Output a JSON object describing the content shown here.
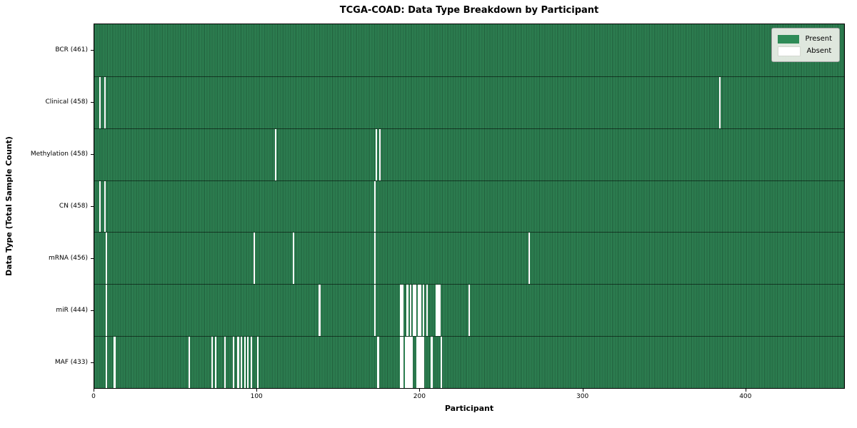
{
  "chart_data": {
    "type": "heatmap",
    "title": "TCGA-COAD: Data Type Breakdown by Participant",
    "xlabel": "Participant",
    "ylabel": "Data Type (Total Sample Count)",
    "x_range": [
      0,
      461
    ],
    "n_participants": 461,
    "x_ticks": [
      0,
      100,
      200,
      300,
      400
    ],
    "legend": {
      "position": "upper right",
      "present_label": "Present",
      "absent_label": "Absent"
    },
    "colors": {
      "present": "#2e8b57",
      "absent": "#ffffff",
      "bar_edge": "rgba(0,0,0,0.40)"
    },
    "rows": [
      {
        "name": "BCR",
        "label": "BCR (461)",
        "present_count": 461,
        "absent_indices": []
      },
      {
        "name": "Clinical",
        "label": "Clinical (458)",
        "present_count": 458,
        "absent_indices": [
          3,
          6,
          384
        ]
      },
      {
        "name": "Methylation",
        "label": "Methylation (458)",
        "present_count": 458,
        "absent_indices": [
          111,
          173,
          175
        ]
      },
      {
        "name": "CN",
        "label": "CN (458)",
        "present_count": 458,
        "absent_indices": [
          3,
          6,
          172
        ]
      },
      {
        "name": "mRNA",
        "label": "mRNA (456)",
        "present_count": 456,
        "absent_indices": [
          7,
          98,
          122,
          172,
          267
        ]
      },
      {
        "name": "miR",
        "label": "miR (444)",
        "present_count": 444,
        "absent_indices": [
          7,
          138,
          172,
          188,
          189,
          192,
          194,
          196,
          197,
          199,
          200,
          202,
          204,
          210,
          211,
          212,
          230
        ]
      },
      {
        "name": "MAF",
        "label": "MAF (433)",
        "present_count": 433,
        "absent_indices": [
          7,
          12,
          58,
          72,
          74,
          80,
          85,
          88,
          90,
          92,
          94,
          96,
          100,
          174,
          188,
          189,
          191,
          192,
          193,
          194,
          195,
          198,
          199,
          200,
          201,
          202,
          207,
          213
        ]
      }
    ]
  }
}
